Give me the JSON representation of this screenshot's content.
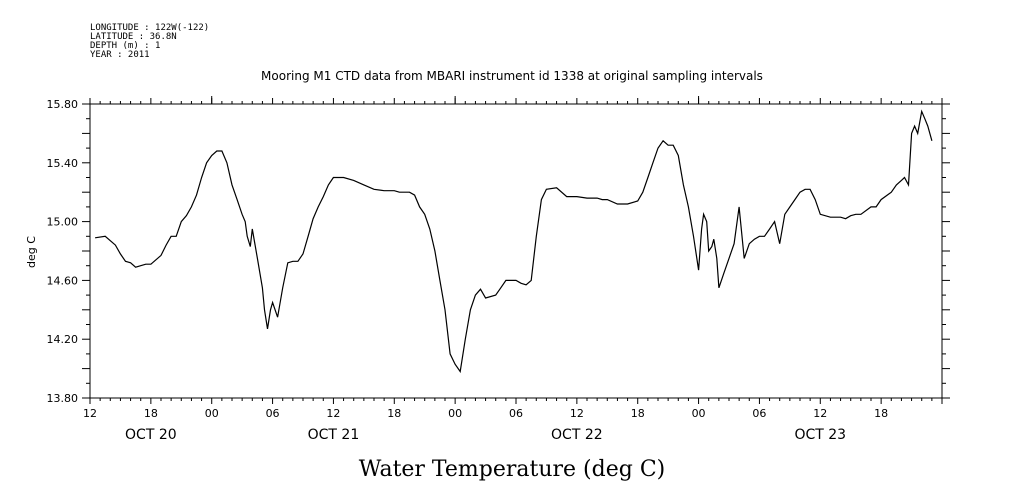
{
  "meta_lines": [
    "LONGITUDE : 122W(-122)",
    "LATITUDE : 36.8N",
    "DEPTH (m) : 1",
    "YEAR : 2011"
  ],
  "chart_data": {
    "type": "line",
    "title": "Mooring M1 CTD data from MBARI instrument id 1338 at original sampling intervals",
    "xlabel": "Water Temperature (deg C)",
    "ylabel": "deg C",
    "xlim": [
      0,
      84
    ],
    "ylim": [
      13.8,
      15.8
    ],
    "grid": false,
    "x_unit": "hours since OCT 20 12:00",
    "y_ticks": [
      "13.80",
      "14.20",
      "14.60",
      "15.00",
      "15.40",
      "15.80"
    ],
    "x_ticks": [
      {
        "hour": 0,
        "label": "12"
      },
      {
        "hour": 6,
        "label": "18"
      },
      {
        "hour": 12,
        "label": "00"
      },
      {
        "hour": 18,
        "label": "06"
      },
      {
        "hour": 24,
        "label": "12"
      },
      {
        "hour": 30,
        "label": "18"
      },
      {
        "hour": 36,
        "label": "00"
      },
      {
        "hour": 42,
        "label": "06"
      },
      {
        "hour": 48,
        "label": "12"
      },
      {
        "hour": 54,
        "label": "18"
      },
      {
        "hour": 60,
        "label": "00"
      },
      {
        "hour": 66,
        "label": "06"
      },
      {
        "hour": 72,
        "label": "12"
      },
      {
        "hour": 78,
        "label": "18"
      }
    ],
    "date_labels": [
      {
        "hour": 6,
        "label": "OCT 20"
      },
      {
        "hour": 24,
        "label": "OCT 21"
      },
      {
        "hour": 48,
        "label": "OCT 22"
      },
      {
        "hour": 72,
        "label": "OCT 23"
      }
    ],
    "series": [
      {
        "x": [
          0.5,
          1.5,
          2.5,
          3.0,
          3.5,
          4.0,
          4.5,
          5.0,
          5.5,
          6.0,
          7.0,
          7.5,
          8.0,
          8.5,
          9.0,
          9.5,
          10.0,
          10.5,
          11.0,
          11.5,
          12.0,
          12.5,
          13.0,
          13.5,
          14.0,
          14.5,
          15.0,
          15.3,
          15.5,
          15.8,
          16.0,
          16.5,
          17.0,
          17.2,
          17.5,
          17.8,
          18.0,
          18.5,
          19.0,
          19.5,
          20.0,
          20.5,
          21.0,
          21.5,
          22.0,
          22.5,
          23.0,
          23.5,
          24.0,
          25.0,
          26.0,
          27.0,
          28.0,
          29.0,
          30.0,
          30.5,
          31.0,
          31.5,
          32.0,
          32.5,
          33.0,
          33.5,
          34.0,
          34.5,
          35.0,
          35.5,
          36.0,
          36.5,
          37.0,
          37.5,
          38.0,
          38.5,
          39.0,
          40.0,
          40.5,
          41.0,
          42.0,
          42.5,
          43.0,
          43.5,
          44.0,
          44.5,
          45.0,
          46.0,
          47.0,
          48.0,
          49.0,
          50.0,
          50.5,
          51.0,
          52.0,
          53.0,
          54.0,
          54.5,
          55.0,
          55.5,
          56.0,
          56.5,
          57.0,
          57.5,
          58.0,
          58.5,
          59.0,
          59.5,
          60.0,
          60.3,
          60.5,
          60.8,
          61.0,
          61.3,
          61.5,
          61.8,
          62.0,
          62.5,
          63.0,
          63.5,
          64.0,
          64.5,
          65.0,
          65.5,
          66.0,
          66.5,
          67.0,
          67.5,
          68.0,
          68.5,
          69.0,
          69.5,
          70.0,
          70.5,
          71.0,
          71.5,
          72.0,
          73.0,
          74.0,
          74.5,
          75.0,
          75.5,
          76.0,
          77.0,
          77.5,
          78.0,
          79.0,
          79.5,
          80.0,
          80.3,
          80.7,
          81.0,
          81.3,
          81.6,
          82.0,
          82.3,
          82.6,
          83.0
        ],
        "y": [
          14.89,
          14.9,
          14.84,
          14.78,
          14.73,
          14.72,
          14.69,
          14.7,
          14.71,
          14.71,
          14.77,
          14.84,
          14.9,
          14.9,
          15.0,
          15.04,
          15.1,
          15.18,
          15.3,
          15.4,
          15.45,
          15.48,
          15.48,
          15.4,
          15.25,
          15.15,
          15.05,
          15.0,
          14.9,
          14.83,
          14.95,
          14.75,
          14.55,
          14.4,
          14.27,
          14.4,
          14.45,
          14.35,
          14.55,
          14.72,
          14.73,
          14.73,
          14.78,
          14.9,
          15.02,
          15.1,
          15.17,
          15.25,
          15.3,
          15.3,
          15.28,
          15.25,
          15.22,
          15.21,
          15.21,
          15.2,
          15.2,
          15.2,
          15.18,
          15.1,
          15.05,
          14.95,
          14.8,
          14.6,
          14.4,
          14.1,
          14.03,
          13.98,
          14.2,
          14.4,
          14.5,
          14.54,
          14.48,
          14.5,
          14.55,
          14.6,
          14.6,
          14.58,
          14.57,
          14.6,
          14.9,
          15.15,
          15.22,
          15.23,
          15.17,
          15.17,
          15.16,
          15.16,
          15.15,
          15.15,
          15.12,
          15.12,
          15.14,
          15.2,
          15.3,
          15.4,
          15.5,
          15.55,
          15.52,
          15.52,
          15.45,
          15.25,
          15.1,
          14.9,
          14.67,
          14.95,
          15.05,
          15.0,
          14.8,
          14.83,
          14.88,
          14.75,
          14.55,
          14.65,
          14.75,
          14.85,
          15.1,
          14.75,
          14.85,
          14.88,
          14.9,
          14.9,
          14.95,
          15.0,
          14.85,
          15.05,
          15.1,
          15.15,
          15.2,
          15.22,
          15.22,
          15.15,
          15.05,
          15.03,
          15.03,
          15.02,
          15.04,
          15.05,
          15.05,
          15.1,
          15.1,
          15.15,
          15.2,
          15.25,
          15.28,
          15.3,
          15.25,
          15.6,
          15.65,
          15.6,
          15.75,
          15.7,
          15.65,
          15.55
        ]
      }
    ]
  }
}
